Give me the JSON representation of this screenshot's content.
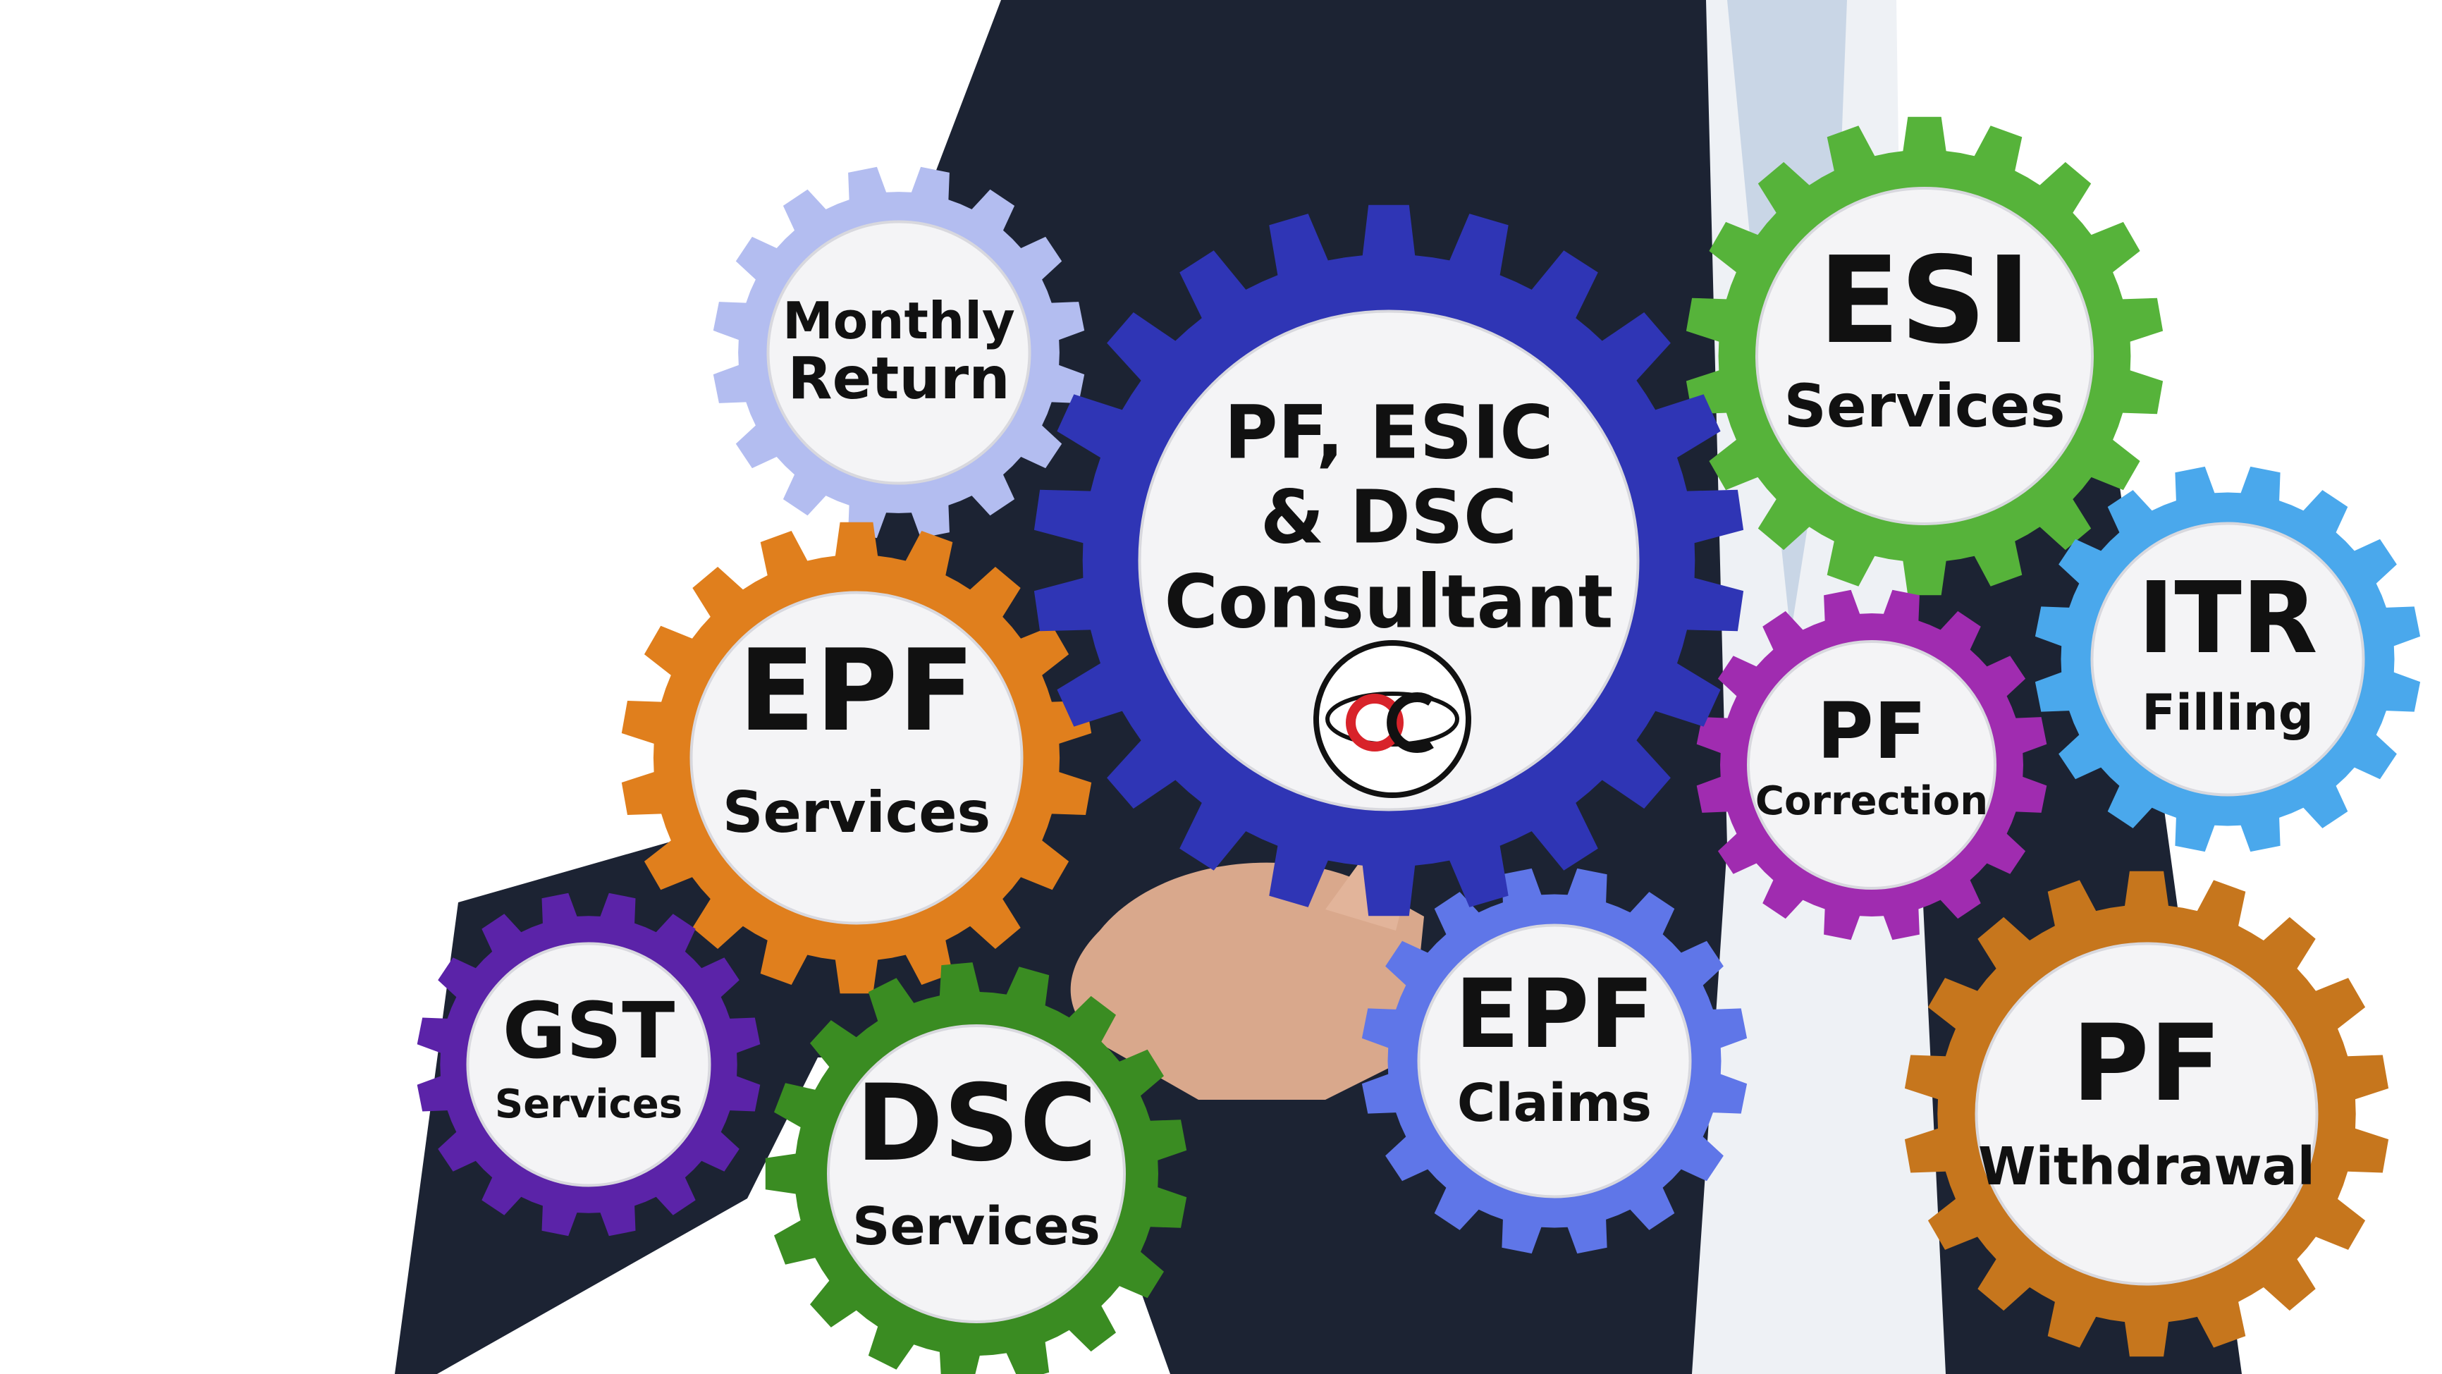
{
  "colors": {
    "background": "#ffffff",
    "suit": "#1c2333",
    "shirt": "#eef1f5",
    "tie": "#c9d6e6",
    "gear_face": "#f4f4f6"
  },
  "center": {
    "lines": [
      "PF, ESIC",
      "& DSC",
      "Consultant"
    ],
    "color": "#2f35b5",
    "logo_icon": "oc-logo-icon"
  },
  "gears": [
    {
      "id": "monthly-return",
      "lines": [
        "Monthly",
        "Return"
      ],
      "color": "#b3bdf0"
    },
    {
      "id": "esi-services",
      "lines": [
        "ESI",
        "Services"
      ],
      "color": "#56b33a"
    },
    {
      "id": "epf-services",
      "lines": [
        "EPF",
        "Services"
      ],
      "color": "#e07f1d"
    },
    {
      "id": "itr-filling",
      "lines": [
        "ITR",
        "Filling"
      ],
      "color": "#4aa8ec"
    },
    {
      "id": "pf-correction",
      "lines": [
        "PF",
        "Correction"
      ],
      "color": "#a02cb0"
    },
    {
      "id": "gst-services",
      "lines": [
        "GST",
        "Services"
      ],
      "color": "#5b23a8"
    },
    {
      "id": "dsc-services",
      "lines": [
        "DSC",
        "Services"
      ],
      "color": "#3a8c22"
    },
    {
      "id": "epf-claims",
      "lines": [
        "EPF",
        "Claims"
      ],
      "color": "#5f76e8"
    },
    {
      "id": "pf-withdrawal",
      "lines": [
        "PF",
        "Withdrawal"
      ],
      "color": "#c6761d"
    }
  ]
}
